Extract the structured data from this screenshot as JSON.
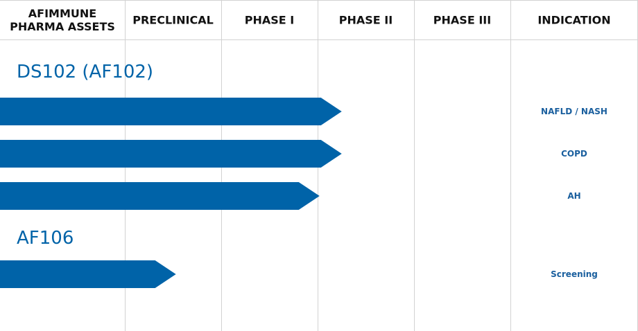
{
  "chart_data": {
    "type": "bar",
    "columns": [
      {
        "label_lines": [
          "AFIMMUNE",
          "PHARMA ASSETS"
        ]
      },
      {
        "label_lines": [
          "PRECLINICAL"
        ]
      },
      {
        "label_lines": [
          "PHASE I"
        ]
      },
      {
        "label_lines": [
          "PHASE II"
        ]
      },
      {
        "label_lines": [
          "PHASE III"
        ]
      },
      {
        "label_lines": [
          "INDICATION"
        ]
      }
    ],
    "groups": [
      {
        "asset": "DS102  (AF102)",
        "programs": [
          {
            "indication": "NAFLD / NASH",
            "progress": 3.25
          },
          {
            "indication": "COPD",
            "progress": 3.25
          },
          {
            "indication": "AH",
            "progress": 3.02
          }
        ]
      },
      {
        "asset": "AF106",
        "programs": [
          {
            "indication": "Screening",
            "progress": 1.53
          }
        ]
      }
    ],
    "bar_color": "#0063a8",
    "grid_color": "#d2d2d2"
  }
}
